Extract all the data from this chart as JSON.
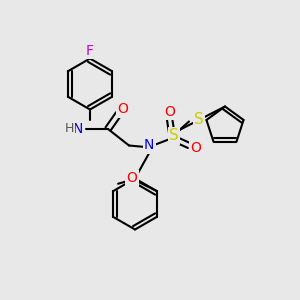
{
  "bg_color": "#e8e8e8",
  "bond_color": "#000000",
  "bond_width": 1.5,
  "atom_colors": {
    "N": "#0000ff",
    "O": "#ff0000",
    "F": "#cc00cc",
    "S": "#cccc00",
    "C": "#000000",
    "H": "#555555"
  },
  "font_size": 9,
  "figsize": [
    3.0,
    3.0
  ],
  "dpi": 100
}
